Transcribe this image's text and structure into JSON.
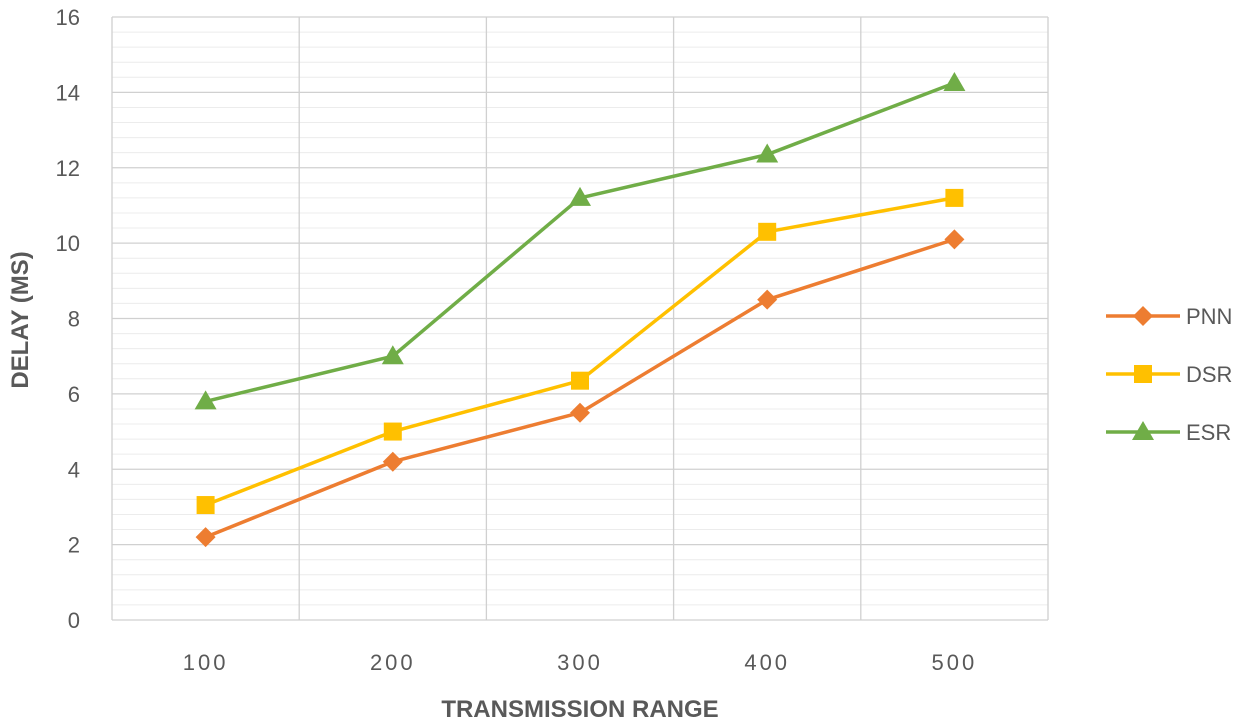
{
  "chart_data": {
    "type": "line",
    "x": [
      100,
      200,
      300,
      400,
      500
    ],
    "x_tick_labels": [
      "100",
      "200",
      "300",
      "400",
      "500"
    ],
    "y_tick_labels": [
      "0",
      "2",
      "4",
      "6",
      "8",
      "10",
      "12",
      "14",
      "16"
    ],
    "ylim": [
      0,
      16
    ],
    "y_major_step": 2,
    "y_minor_step": 0.4,
    "grid": true,
    "xlabel": "TRANSMISSION RANGE",
    "ylabel": "DELAY (MS)",
    "legend_position": "right",
    "series": [
      {
        "name": "PNN",
        "color": "#ED7D31",
        "marker": "diamond",
        "values": [
          2.2,
          4.2,
          5.5,
          8.5,
          10.1
        ]
      },
      {
        "name": "DSR",
        "color": "#FFC000",
        "marker": "square",
        "values": [
          3.05,
          5.0,
          6.35,
          10.3,
          11.2
        ]
      },
      {
        "name": "ESR",
        "color": "#70AD47",
        "marker": "triangle",
        "values": [
          5.8,
          7.0,
          11.2,
          12.35,
          14.25
        ]
      }
    ]
  }
}
